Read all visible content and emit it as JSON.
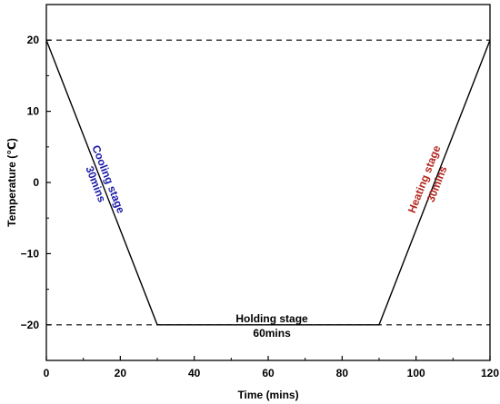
{
  "chart_data": {
    "type": "line",
    "xlabel": "Time (mins)",
    "ylabel": "Temperature (℃)",
    "xlim": [
      0,
      120
    ],
    "ylim": [
      -25,
      25
    ],
    "xticks": [
      0,
      20,
      40,
      60,
      80,
      100,
      120
    ],
    "yticks": [
      -20,
      -10,
      0,
      10,
      20
    ],
    "grid": false,
    "series": [
      {
        "x": [
          0,
          30,
          90,
          120
        ],
        "y": [
          20,
          -20,
          -20,
          20
        ],
        "color": "#000000"
      }
    ],
    "reference_lines": [
      {
        "y": 20,
        "style": "dashed",
        "color": "#000000"
      },
      {
        "y": -20,
        "style": "dashed",
        "color": "#000000"
      }
    ],
    "annotations": [
      {
        "lines": [
          "Cooling stage",
          "30mins"
        ],
        "x": 14.5,
        "y": 0,
        "color": "#1a1aa6",
        "orientation": "along-cooling-line"
      },
      {
        "lines": [
          "Holding stage",
          "60mins"
        ],
        "x": 61,
        "y": -20,
        "color": "#000000",
        "orientation": "horizontal"
      },
      {
        "lines": [
          "Heating stage",
          "30mins"
        ],
        "x": 104.5,
        "y": 0,
        "color": "#b3261e",
        "orientation": "along-heating-line"
      }
    ]
  }
}
